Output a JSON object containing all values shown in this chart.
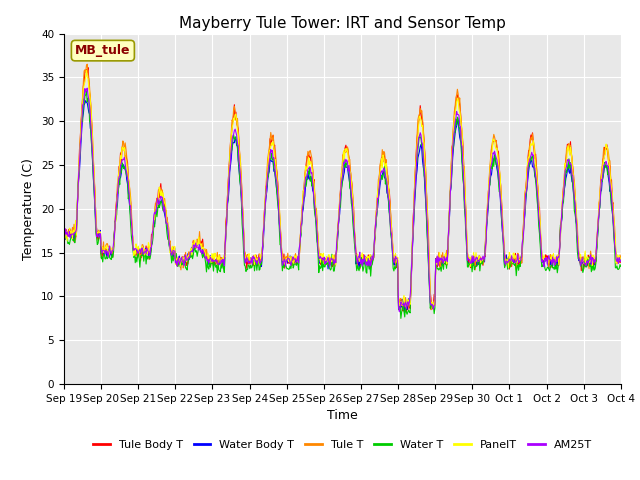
{
  "title": "Mayberry Tule Tower: IRT and Sensor Temp",
  "xlabel": "Time",
  "ylabel": "Temperature (C)",
  "ylim": [
    0,
    40
  ],
  "yticks": [
    0,
    5,
    10,
    15,
    20,
    25,
    30,
    35,
    40
  ],
  "xtick_labels": [
    "Sep 19",
    "Sep 20",
    "Sep 21",
    "Sep 22",
    "Sep 23",
    "Sep 24",
    "Sep 25",
    "Sep 26",
    "Sep 27",
    "Sep 28",
    "Sep 29",
    "Sep 30",
    "Oct 1",
    "Oct 2",
    "Oct 3",
    "Oct 4"
  ],
  "legend_entries": [
    "Tule Body T",
    "Water Body T",
    "Tule T",
    "Water T",
    "PanelT",
    "AM25T"
  ],
  "legend_colors": [
    "#ff0000",
    "#0000ff",
    "#ff8800",
    "#00cc00",
    "#ffff00",
    "#aa00ff"
  ],
  "series_colors": [
    "#ff0000",
    "#0000ff",
    "#ff8800",
    "#00cc00",
    "#ffff00",
    "#aa00ff"
  ],
  "annotation_text": "MB_tule",
  "background_color": "#e8e8e8",
  "title_fontsize": 11,
  "axis_label_fontsize": 9,
  "tick_fontsize": 7.5,
  "legend_fontsize": 8
}
